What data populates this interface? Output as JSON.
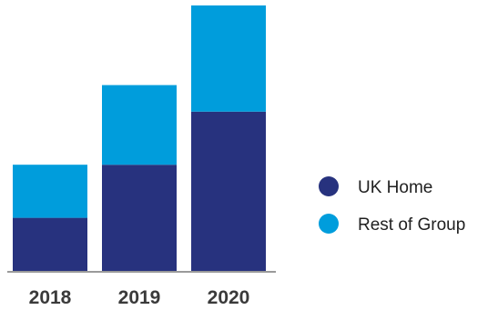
{
  "chart_data": {
    "type": "bar",
    "stacked": true,
    "categories": [
      "2018",
      "2019",
      "2020"
    ],
    "series": [
      {
        "name": "UK Home",
        "values": [
          30,
          60,
          90
        ],
        "color": "#27327e"
      },
      {
        "name": "Rest of Group",
        "values": [
          30,
          45,
          60
        ],
        "color": "#009ddc"
      }
    ],
    "ylim": [
      0,
      150
    ],
    "y_axis_visible": false,
    "grid": false,
    "legend_position": "right",
    "axis_color": "#9a9a9a"
  }
}
